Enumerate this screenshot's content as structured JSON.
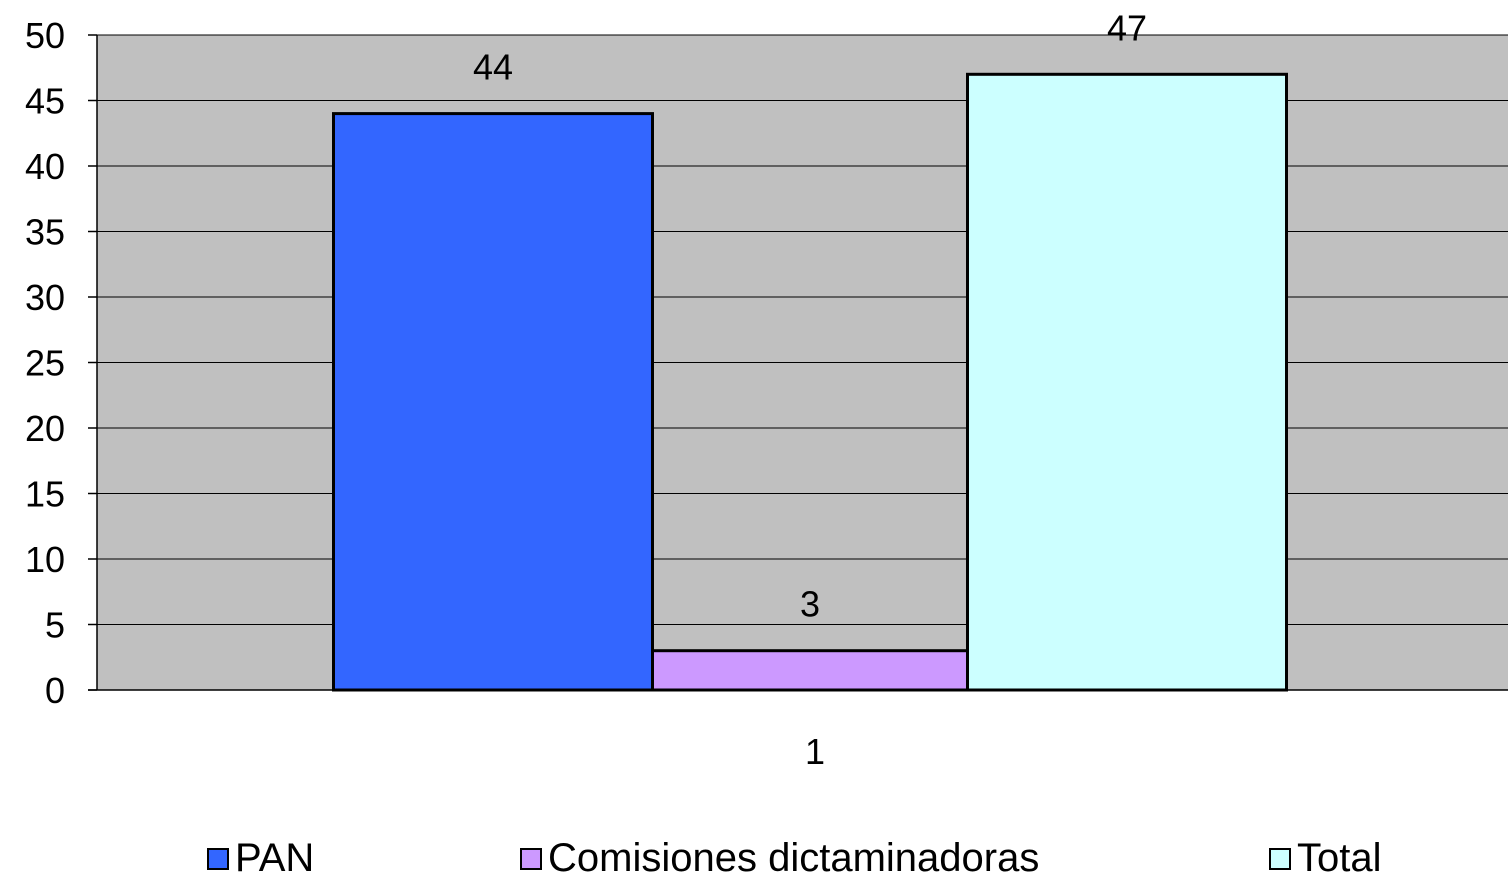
{
  "chart_data": {
    "type": "bar",
    "categories": [
      "1"
    ],
    "series": [
      {
        "name": "PAN",
        "values": [
          44
        ],
        "color": "#3366FF"
      },
      {
        "name": "Comisiones dictaminadoras",
        "values": [
          3
        ],
        "color": "#CC99FF"
      },
      {
        "name": "Total",
        "values": [
          47
        ],
        "color": "#CCFFFF"
      }
    ],
    "title": "",
    "xlabel": "",
    "ylabel": "",
    "ylim": [
      0,
      50
    ],
    "yticks": [
      "0",
      "5",
      "10",
      "15",
      "20",
      "25",
      "30",
      "35",
      "40",
      "45",
      "50"
    ],
    "grid": true,
    "legend_position": "bottom",
    "plot_background": "#C0C0C0",
    "data_labels": [
      "44",
      "3",
      "47"
    ]
  }
}
